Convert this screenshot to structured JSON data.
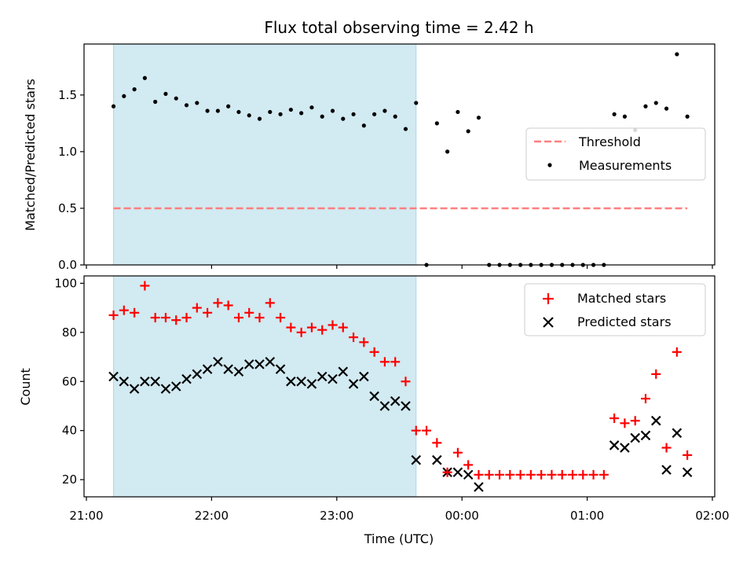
{
  "chart_data": {
    "title": "Flux total observing time = 2.42 h",
    "shading": {
      "x_start": "21:13",
      "x_end": "23:38",
      "color": "#add8e6"
    },
    "xaxis": {
      "label": "Time (UTC)",
      "range": [
        "21:00",
        "02:00"
      ],
      "ticks": [
        "21:00",
        "22:00",
        "23:00",
        "00:00",
        "01:00",
        "02:00"
      ]
    },
    "panels": [
      {
        "type": "scatter",
        "ylabel": "Matched/Predicted stars",
        "ylim": [
          0,
          1.95
        ],
        "yticks": [
          "0.0",
          "0.5",
          "1.0",
          "1.5"
        ],
        "series": [
          {
            "name": "Threshold",
            "style": "dashed-line",
            "color": "#ff7f7f",
            "x": [
              "21:13",
              "01:48"
            ],
            "y": [
              0.5,
              0.5
            ]
          },
          {
            "name": "Measurements",
            "style": "dot",
            "color": "#000000",
            "x": [
              "21:13",
              "21:18",
              "21:23",
              "21:28",
              "21:33",
              "21:38",
              "21:43",
              "21:48",
              "21:53",
              "21:58",
              "22:03",
              "22:08",
              "22:13",
              "22:18",
              "22:23",
              "22:28",
              "22:33",
              "22:38",
              "22:43",
              "22:48",
              "22:53",
              "22:58",
              "23:03",
              "23:08",
              "23:13",
              "23:18",
              "23:23",
              "23:28",
              "23:33",
              "23:38",
              "23:43",
              "23:48",
              "23:53",
              "23:58",
              "00:03",
              "00:08",
              "00:13",
              "00:18",
              "00:23",
              "00:28",
              "00:33",
              "00:38",
              "00:43",
              "00:48",
              "00:53",
              "00:58",
              "01:03",
              "01:08",
              "01:13",
              "01:18",
              "01:23",
              "01:28",
              "01:33",
              "01:38",
              "01:43",
              "01:48"
            ],
            "y": [
              1.4,
              1.49,
              1.55,
              1.65,
              1.44,
              1.51,
              1.47,
              1.41,
              1.43,
              1.36,
              1.36,
              1.4,
              1.35,
              1.32,
              1.29,
              1.35,
              1.33,
              1.37,
              1.34,
              1.39,
              1.31,
              1.36,
              1.29,
              1.33,
              1.23,
              1.33,
              1.36,
              1.31,
              1.2,
              1.43,
              0.0,
              1.25,
              1.0,
              1.35,
              1.18,
              1.3,
              0.0,
              0.0,
              0.0,
              0.0,
              0.0,
              0.0,
              0.0,
              0.0,
              0.0,
              0.0,
              0.0,
              0.0,
              1.33,
              1.31,
              1.19,
              1.4,
              1.43,
              1.38,
              1.86,
              1.31
            ]
          }
        ],
        "legend_position": "center-right"
      },
      {
        "type": "scatter",
        "ylabel": "Count",
        "ylim": [
          13,
          103
        ],
        "yticks": [
          "20",
          "40",
          "60",
          "80",
          "100"
        ],
        "series": [
          {
            "name": "Matched stars",
            "marker": "+",
            "color": "#ff0000",
            "x": [
              "21:13",
              "21:18",
              "21:23",
              "21:28",
              "21:33",
              "21:38",
              "21:43",
              "21:48",
              "21:53",
              "21:58",
              "22:03",
              "22:08",
              "22:13",
              "22:18",
              "22:23",
              "22:28",
              "22:33",
              "22:38",
              "22:43",
              "22:48",
              "22:53",
              "22:58",
              "23:03",
              "23:08",
              "23:13",
              "23:18",
              "23:23",
              "23:28",
              "23:33",
              "23:38",
              "23:43",
              "23:48",
              "23:53",
              "23:58",
              "00:03",
              "00:08",
              "00:13",
              "00:18",
              "00:23",
              "00:28",
              "00:33",
              "00:38",
              "00:43",
              "00:48",
              "00:53",
              "00:58",
              "01:03",
              "01:08",
              "01:13",
              "01:18",
              "01:23",
              "01:28",
              "01:33",
              "01:38",
              "01:43",
              "01:48"
            ],
            "y": [
              87,
              89,
              88,
              99,
              86,
              86,
              85,
              86,
              90,
              88,
              92,
              91,
              86,
              88,
              86,
              92,
              86,
              82,
              80,
              82,
              81,
              83,
              82,
              78,
              76,
              72,
              68,
              68,
              60,
              40,
              40,
              35,
              23,
              31,
              26,
              22,
              22,
              22,
              22,
              22,
              22,
              22,
              22,
              22,
              22,
              22,
              22,
              22,
              45,
              43,
              44,
              53,
              63,
              33,
              72,
              30
            ]
          },
          {
            "name": "Predicted stars",
            "marker": "x",
            "color": "#000000",
            "x": [
              "21:13",
              "21:18",
              "21:23",
              "21:28",
              "21:33",
              "21:38",
              "21:43",
              "21:48",
              "21:53",
              "21:58",
              "22:03",
              "22:08",
              "22:13",
              "22:18",
              "22:23",
              "22:28",
              "22:33",
              "22:38",
              "22:43",
              "22:48",
              "22:53",
              "22:58",
              "23:03",
              "23:08",
              "23:13",
              "23:18",
              "23:23",
              "23:28",
              "23:33",
              "23:38",
              "23:48",
              "23:53",
              "23:58",
              "00:03",
              "00:08",
              "01:13",
              "01:18",
              "01:23",
              "01:28",
              "01:33",
              "01:38",
              "01:43",
              "01:48"
            ],
            "y": [
              62,
              60,
              57,
              60,
              60,
              57,
              58,
              61,
              63,
              65,
              68,
              65,
              64,
              67,
              67,
              68,
              65,
              60,
              60,
              59,
              62,
              61,
              64,
              59,
              62,
              54,
              50,
              52,
              50,
              28,
              28,
              23,
              23,
              22,
              17,
              34,
              33,
              37,
              38,
              44,
              24,
              39,
              23
            ]
          }
        ],
        "legend_position": "top-right"
      }
    ]
  }
}
